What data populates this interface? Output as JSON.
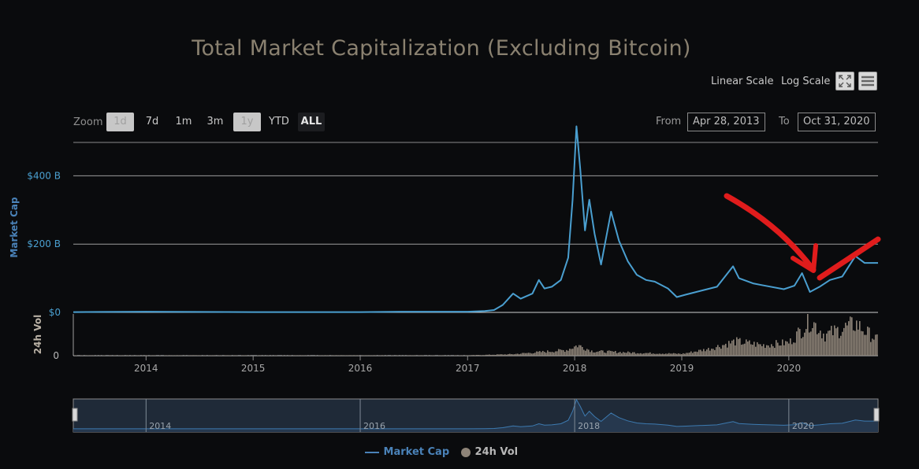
{
  "title": "Total Market Capitalization (Excluding Bitcoin)",
  "toolbar": {
    "linear_label": "Linear Scale",
    "log_label": "Log Scale",
    "fullscreen_icon": "fullscreen-icon",
    "menu_icon": "hamburger-menu-icon"
  },
  "zoom": {
    "label": "Zoom",
    "buttons": [
      {
        "label": "1d",
        "state": "disabled"
      },
      {
        "label": "7d",
        "state": "normal"
      },
      {
        "label": "1m",
        "state": "normal"
      },
      {
        "label": "3m",
        "state": "normal"
      },
      {
        "label": "1y",
        "state": "disabled"
      },
      {
        "label": "YTD",
        "state": "normal"
      },
      {
        "label": "ALL",
        "state": "active"
      }
    ]
  },
  "range": {
    "from_label": "From",
    "from_value": "Apr 28, 2013",
    "to_label": "To",
    "to_value": "Oct 31, 2020"
  },
  "legend": {
    "market_cap": "Market Cap",
    "volume": "24h Vol"
  },
  "colors": {
    "market_cap": "#4a9fd0",
    "volume": "#8e8478",
    "annotation": "#e01c1c",
    "navigator_fill": "#1f2a38"
  },
  "chart_data": {
    "type": "line",
    "title": "Total Market Capitalization (Excluding Bitcoin)",
    "x_range": [
      "2013-04-28",
      "2020-10-31"
    ],
    "x_ticks": [
      "2014",
      "2015",
      "2016",
      "2017",
      "2018",
      "2019",
      "2020"
    ],
    "navigator_ticks": [
      "2014",
      "2016",
      "2018",
      "2020"
    ],
    "y_axis": {
      "label": "Market Cap",
      "ylim": [
        0,
        500
      ],
      "ticks": [
        {
          "value": 0,
          "label": "$0"
        },
        {
          "value": 200,
          "label": "$200 B"
        },
        {
          "value": 400,
          "label": "$400 B"
        }
      ]
    },
    "volume_axis": {
      "label": "24h Vol",
      "ticks": [
        {
          "value": 0,
          "label": "0"
        }
      ]
    },
    "series": [
      {
        "name": "Market Cap",
        "unit": "B USD",
        "points": [
          [
            "2013-04-28",
            1
          ],
          [
            "2014-01-01",
            2
          ],
          [
            "2015-01-01",
            1
          ],
          [
            "2016-01-01",
            1
          ],
          [
            "2016-06-01",
            2
          ],
          [
            "2017-01-01",
            2
          ],
          [
            "2017-03-01",
            4
          ],
          [
            "2017-04-01",
            7
          ],
          [
            "2017-05-01",
            22
          ],
          [
            "2017-06-05",
            55
          ],
          [
            "2017-07-01",
            40
          ],
          [
            "2017-08-10",
            55
          ],
          [
            "2017-09-01",
            95
          ],
          [
            "2017-09-20",
            70
          ],
          [
            "2017-10-15",
            75
          ],
          [
            "2017-11-15",
            95
          ],
          [
            "2017-12-10",
            160
          ],
          [
            "2017-12-25",
            330
          ],
          [
            "2018-01-07",
            545
          ],
          [
            "2018-01-20",
            420
          ],
          [
            "2018-02-05",
            240
          ],
          [
            "2018-02-20",
            330
          ],
          [
            "2018-03-10",
            230
          ],
          [
            "2018-04-01",
            140
          ],
          [
            "2018-05-05",
            295
          ],
          [
            "2018-06-01",
            210
          ],
          [
            "2018-07-01",
            150
          ],
          [
            "2018-08-01",
            110
          ],
          [
            "2018-09-01",
            95
          ],
          [
            "2018-10-01",
            90
          ],
          [
            "2018-11-15",
            70
          ],
          [
            "2018-12-15",
            45
          ],
          [
            "2019-01-15",
            52
          ],
          [
            "2019-03-01",
            62
          ],
          [
            "2019-05-01",
            75
          ],
          [
            "2019-06-25",
            135
          ],
          [
            "2019-07-15",
            100
          ],
          [
            "2019-09-01",
            85
          ],
          [
            "2019-10-01",
            80
          ],
          [
            "2019-12-15",
            68
          ],
          [
            "2020-01-20",
            78
          ],
          [
            "2020-02-15",
            115
          ],
          [
            "2020-03-13",
            60
          ],
          [
            "2020-04-15",
            75
          ],
          [
            "2020-05-20",
            95
          ],
          [
            "2020-07-01",
            105
          ],
          [
            "2020-08-15",
            165
          ],
          [
            "2020-09-15",
            145
          ],
          [
            "2020-10-31",
            145
          ]
        ]
      },
      {
        "name": "24h Vol",
        "unit": "relative",
        "points": [
          [
            "2013-04-28",
            0.01
          ],
          [
            "2016-12-31",
            0.01
          ],
          [
            "2017-06-01",
            0.04
          ],
          [
            "2017-12-01",
            0.15
          ],
          [
            "2018-01-10",
            0.28
          ],
          [
            "2018-03-01",
            0.12
          ],
          [
            "2018-09-01",
            0.07
          ],
          [
            "2019-01-01",
            0.05
          ],
          [
            "2019-04-01",
            0.18
          ],
          [
            "2019-07-01",
            0.38
          ],
          [
            "2019-10-01",
            0.28
          ],
          [
            "2020-01-01",
            0.35
          ],
          [
            "2020-03-13",
            0.95
          ],
          [
            "2020-05-01",
            0.55
          ],
          [
            "2020-08-15",
            0.85
          ],
          [
            "2020-09-15",
            0.65
          ],
          [
            "2020-10-31",
            0.4
          ]
        ]
      }
    ]
  }
}
